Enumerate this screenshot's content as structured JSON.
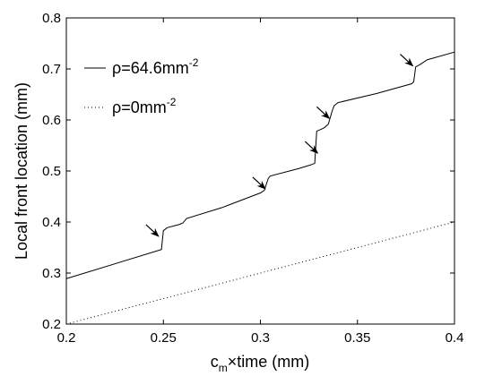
{
  "chart_data": {
    "type": "line",
    "title": "",
    "xlabel": {
      "prefix": "c",
      "subscript": "m",
      "suffix": "×time (mm)"
    },
    "ylabel": "Local front location (mm)",
    "xlim": [
      0.2,
      0.4
    ],
    "ylim": [
      0.2,
      0.8
    ],
    "x_ticks": [
      0.2,
      0.25,
      0.3,
      0.35,
      0.4
    ],
    "x_tick_labels": [
      "0.2",
      "0.25",
      "0.3",
      "0.35",
      "0.4"
    ],
    "y_ticks": [
      0.2,
      0.3,
      0.4,
      0.5,
      0.6,
      0.7,
      0.8
    ],
    "y_tick_labels": [
      "0.2",
      "0.3",
      "0.4",
      "0.5",
      "0.6",
      "0.7",
      "0.8"
    ],
    "grid": false,
    "legend_placement": "top-left",
    "series": [
      {
        "name": "ρ=64.6mm-2",
        "legend_base": "ρ=64.6mm",
        "legend_sup": "-2",
        "style": "solid",
        "color": "#000000",
        "x": [
          0.2,
          0.249,
          0.25,
          0.252,
          0.258,
          0.26,
          0.262,
          0.28,
          0.3,
          0.302,
          0.304,
          0.305,
          0.32,
          0.326,
          0.328,
          0.329,
          0.332,
          0.333,
          0.335,
          0.337,
          0.338,
          0.34,
          0.36,
          0.378,
          0.379,
          0.38,
          0.382,
          0.386,
          0.4
        ],
        "y": [
          0.289,
          0.346,
          0.383,
          0.389,
          0.395,
          0.398,
          0.407,
          0.428,
          0.457,
          0.462,
          0.485,
          0.49,
          0.505,
          0.512,
          0.515,
          0.578,
          0.583,
          0.585,
          0.592,
          0.618,
          0.628,
          0.634,
          0.652,
          0.671,
          0.675,
          0.704,
          0.708,
          0.718,
          0.733
        ]
      },
      {
        "name": "ρ=0mm-2",
        "legend_base": "ρ=0mm",
        "legend_sup": "-2",
        "style": "dotted",
        "color": "#000000",
        "x": [
          0.2,
          0.4
        ],
        "y": [
          0.2,
          0.4
        ]
      }
    ],
    "annotations": [
      {
        "type": "arrow",
        "x": 0.2475,
        "y": 0.372
      },
      {
        "type": "arrow",
        "x": 0.3025,
        "y": 0.465
      },
      {
        "type": "arrow",
        "x": 0.3295,
        "y": 0.535
      },
      {
        "type": "arrow",
        "x": 0.3355,
        "y": 0.603
      },
      {
        "type": "arrow",
        "x": 0.3785,
        "y": 0.706
      }
    ]
  }
}
